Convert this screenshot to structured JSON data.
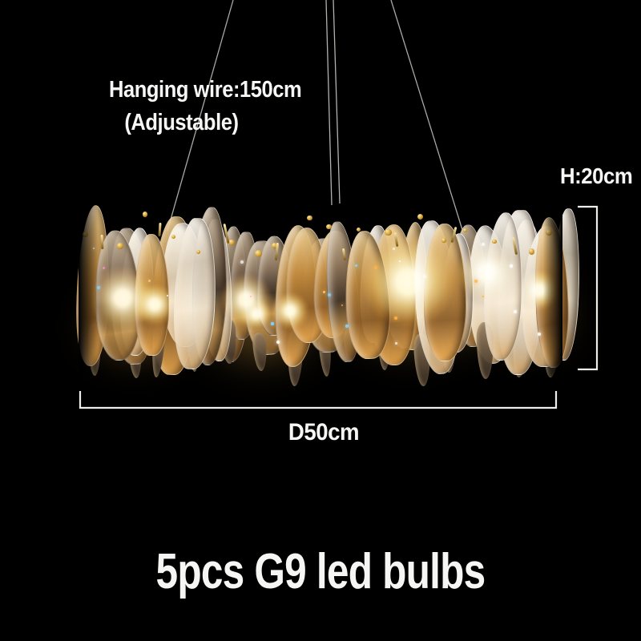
{
  "colors": {
    "background": "#000000",
    "text": "#f6f6f4",
    "dimension_lines": "#efede9",
    "wire": "#c9c6c0",
    "gold": "#cf9c30",
    "gold_dark": "#7a5512",
    "gold_light": "#ffe9a8",
    "glow_warm": "#ffb347",
    "bulb_core": "#fff6dd",
    "crystal_smoke_dark": "#3e332a",
    "crystal_smoke_mid": "#8a7560",
    "crystal_smoke_light": "#d2c3aa",
    "crystal_clear": "#fffdf7"
  },
  "annotations": {
    "hanging_wire_line1": "Hanging wire:150cm",
    "hanging_wire_line2": "(Adjustable)",
    "height": "H:20cm",
    "diameter": "D50cm",
    "bulbs": "5pcs G9 led bulbs"
  }
}
